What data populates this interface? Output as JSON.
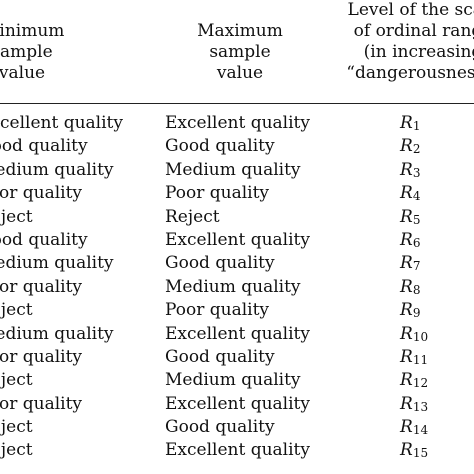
{
  "header": {
    "min_lines": [
      "Minimum",
      "sample",
      "value"
    ],
    "max_lines": [
      "Maximum",
      "sample",
      "value"
    ],
    "level_lines": [
      "Level of the scale",
      "of ordinal range",
      "(in increasing",
      "“dangerousness”)"
    ]
  },
  "rows": [
    {
      "min": "Excellent quality",
      "max": "Excellent quality",
      "level_symbol": "R",
      "level_index": "1"
    },
    {
      "min": "Good quality",
      "max": "Good quality",
      "level_symbol": "R",
      "level_index": "2"
    },
    {
      "min": "Medium quality",
      "max": "Medium quality",
      "level_symbol": "R",
      "level_index": "3"
    },
    {
      "min": "Poor quality",
      "max": "Poor quality",
      "level_symbol": "R",
      "level_index": "4"
    },
    {
      "min": "Reject",
      "max": "Reject",
      "level_symbol": "R",
      "level_index": "5"
    },
    {
      "min": "Good quality",
      "max": "Excellent quality",
      "level_symbol": "R",
      "level_index": "6"
    },
    {
      "min": "Medium quality",
      "max": "Good quality",
      "level_symbol": "R",
      "level_index": "7"
    },
    {
      "min": "Poor quality",
      "max": "Medium quality",
      "level_symbol": "R",
      "level_index": "8"
    },
    {
      "min": "Reject",
      "max": "Poor quality",
      "level_symbol": "R",
      "level_index": "9"
    },
    {
      "min": "Medium quality",
      "max": "Excellent quality",
      "level_symbol": "R",
      "level_index": "10"
    },
    {
      "min": "Poor quality",
      "max": "Good quality",
      "level_symbol": "R",
      "level_index": "11"
    },
    {
      "min": "Reject",
      "max": "Medium quality",
      "level_symbol": "R",
      "level_index": "12"
    },
    {
      "min": "Poor quality",
      "max": "Excellent quality",
      "level_symbol": "R",
      "level_index": "13"
    },
    {
      "min": "Reject",
      "max": "Good quality",
      "level_symbol": "R",
      "level_index": "14"
    },
    {
      "min": "Reject",
      "max": "Excellent quality",
      "level_symbol": "R",
      "level_index": "15"
    }
  ]
}
